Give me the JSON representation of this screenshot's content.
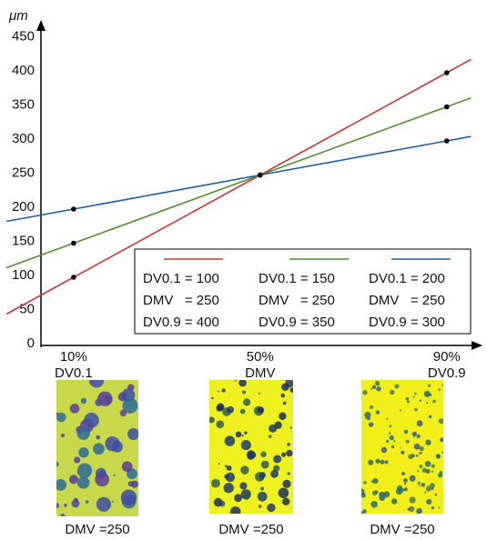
{
  "chart_data": {
    "type": "line",
    "y_label": "μm",
    "x": [
      10,
      50,
      90
    ],
    "xlim": [
      3,
      100
    ],
    "xticks": [
      {
        "value": 10,
        "label": "10%"
      },
      {
        "value": 50,
        "label": "50%"
      },
      {
        "value": 90,
        "label": "90%"
      }
    ],
    "xtick_sublabels": [
      "DV0.1",
      "DMV",
      "DV0.9"
    ],
    "ylim": [
      0,
      450
    ],
    "yticks": [
      0,
      50,
      100,
      150,
      200,
      250,
      300,
      350,
      400,
      450
    ],
    "series": [
      {
        "color": "#c23b3b",
        "values": [
          100,
          250,
          400
        ],
        "legend_text": [
          "DV0.1 = 100",
          "DMV   = 250",
          "DV0.9 = 400"
        ]
      },
      {
        "color": "#4f8f2f",
        "values": [
          150,
          250,
          350
        ],
        "legend_text": [
          "DV0.1 = 150",
          "DMV   = 250",
          "DV0.9 = 350"
        ]
      },
      {
        "color": "#1f5ca6",
        "values": [
          200,
          250,
          300
        ],
        "legend_text": [
          "DV0.1 = 200",
          "DMV   = 250",
          "DV0.9 = 300"
        ]
      }
    ]
  },
  "panels": [
    "DMV =250",
    "DMV =250",
    "DMV =250"
  ]
}
